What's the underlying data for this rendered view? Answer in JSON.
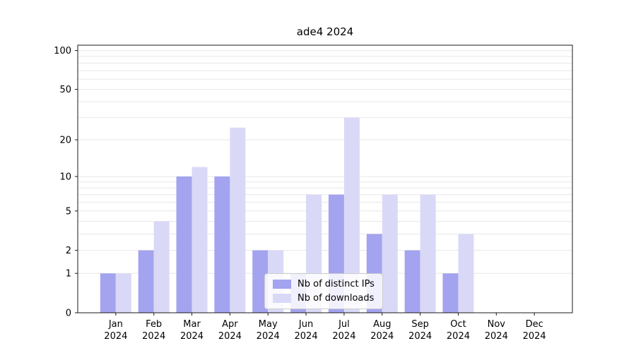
{
  "title": "ade4 2024",
  "colors": {
    "ips_bar": "#a3a3ef",
    "downloads_bar": "#d9d9f7",
    "gridline": "#e7e7e7",
    "axis": "#1a1a1a",
    "text": "#000000",
    "background": "#ffffff"
  },
  "legend": {
    "items": [
      {
        "label": "Nb of distinct IPs"
      },
      {
        "label": "Nb of downloads"
      }
    ]
  },
  "chart_data": {
    "type": "bar",
    "title": "ade4 2024",
    "categories": [
      "Jan 2024",
      "Feb 2024",
      "Mar 2024",
      "Apr 2024",
      "May 2024",
      "Jun 2024",
      "Jul 2024",
      "Aug 2024",
      "Sep 2024",
      "Oct 2024",
      "Nov 2024",
      "Dec 2024"
    ],
    "months": [
      "Jan",
      "Feb",
      "Mar",
      "Apr",
      "May",
      "Jun",
      "Jul",
      "Aug",
      "Sep",
      "Oct",
      "Nov",
      "Dec"
    ],
    "year": "2024",
    "series": [
      {
        "name": "Nb of distinct IPs",
        "color": "#a3a3ef",
        "values": [
          1,
          2,
          10,
          10,
          2,
          1,
          7,
          3,
          2,
          1,
          0,
          0
        ]
      },
      {
        "name": "Nb of downloads",
        "color": "#d9d9f7",
        "values": [
          1,
          4,
          12,
          25,
          2,
          7,
          30,
          7,
          7,
          3,
          0,
          0
        ]
      }
    ],
    "yscale": "log1p",
    "ylabel": "",
    "xlabel": "",
    "ylim": [
      0,
      110
    ],
    "y_ticks": [
      0,
      1,
      2,
      5,
      10,
      20,
      50,
      100
    ],
    "minor_gridlines": [
      1,
      2,
      3,
      4,
      5,
      6,
      7,
      8,
      9,
      10,
      20,
      30,
      40,
      50,
      60,
      70,
      80,
      90,
      100
    ],
    "grid": "horizontal minor log gridlines",
    "legend_position": "lower center inside plot"
  }
}
